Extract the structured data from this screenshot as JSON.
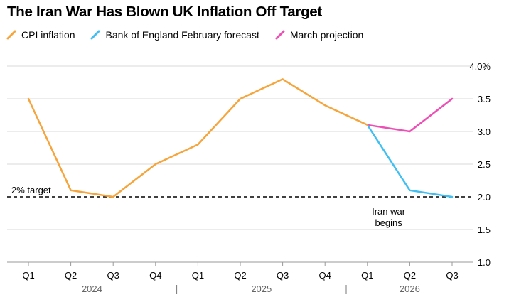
{
  "chart_data": {
    "type": "line",
    "title": "The Iran War Has Blown UK Inflation Off Target",
    "categories": [
      "Q1",
      "Q2",
      "Q3",
      "Q4",
      "Q1",
      "Q2",
      "Q3",
      "Q4",
      "Q1",
      "Q2",
      "Q3"
    ],
    "years": [
      {
        "label": "2024",
        "start": 0,
        "end": 3
      },
      {
        "label": "2025",
        "start": 4,
        "end": 7
      },
      {
        "label": "2026",
        "start": 8,
        "end": 10
      }
    ],
    "series": [
      {
        "name": "CPI inflation",
        "color": "#f5a53b",
        "x": [
          0,
          1,
          2,
          3,
          4,
          5,
          6,
          7,
          8
        ],
        "values": [
          3.5,
          2.1,
          2.0,
          2.5,
          2.8,
          3.5,
          3.8,
          3.4,
          3.1
        ]
      },
      {
        "name": "Bank of England February forecast",
        "color": "#3fbff2",
        "x": [
          8,
          9,
          10
        ],
        "values": [
          3.1,
          2.1,
          2.0
        ]
      },
      {
        "name": "March projection",
        "color": "#ee4fb6",
        "x": [
          8,
          9,
          10
        ],
        "values": [
          3.1,
          3.0,
          3.5
        ]
      }
    ],
    "yticks": [
      1.0,
      1.5,
      2.0,
      2.5,
      3.0,
      3.5,
      4.0
    ],
    "ytick_labels": [
      "1.0",
      "1.5",
      "2.0",
      "2.5",
      "3.0",
      "3.5",
      "4.0%"
    ],
    "ylim": [
      1.0,
      4.0
    ],
    "grid": true,
    "reference_line": {
      "value": 2.0,
      "label": "2% target"
    },
    "annotation": {
      "lines": [
        "Iran war",
        "begins"
      ],
      "at": 8.5
    }
  }
}
